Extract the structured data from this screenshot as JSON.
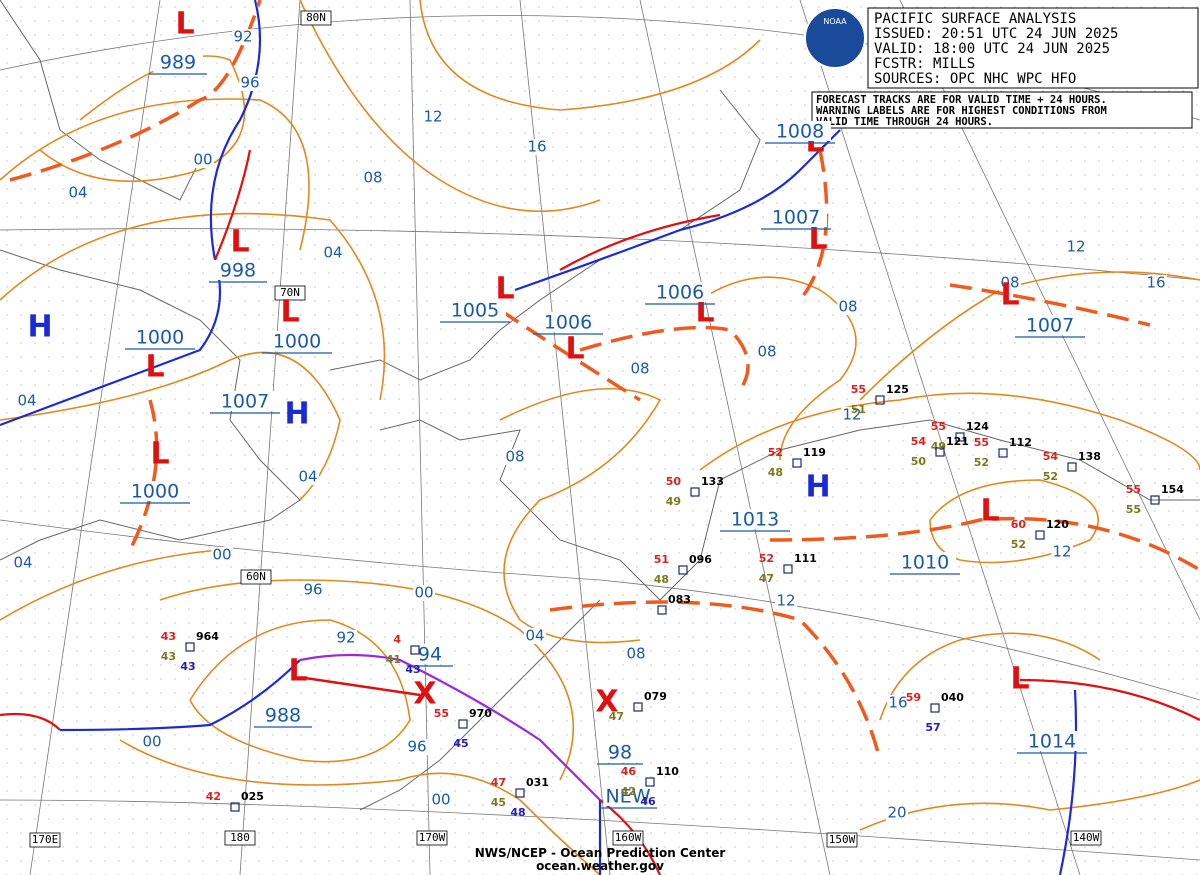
{
  "header": {
    "lines": [
      "PACIFIC SURFACE ANALYSIS",
      "ISSUED: 20:51 UTC 24 JUN 2025",
      "VALID:  18:00 UTC 24 JUN 2025",
      "FCSTR:  MILLS",
      "SOURCES: OPC NHC WPC HFO"
    ],
    "logo": "NOAA"
  },
  "notice": [
    "FORECAST TRACKS ARE FOR VALID TIME + 24 HOURS.",
    "WARNING LABELS ARE FOR HIGHEST CONDITIONS FROM",
    "VALID TIME THROUGH 24 HOURS."
  ],
  "grid_labels": [
    "80N",
    "70N",
    "60N",
    "170E",
    "180",
    "170W",
    "160W",
    "150W",
    "140W"
  ],
  "pressure_centers": [
    {
      "symbol": "L",
      "value": "989"
    },
    {
      "symbol": "L",
      "value": "998"
    },
    {
      "symbol": "L",
      "value": "1000"
    },
    {
      "symbol": "L",
      "value": "1000"
    },
    {
      "symbol": "L",
      "value": "1000"
    },
    {
      "symbol": "H",
      "value": "1007"
    },
    {
      "symbol": "H"
    },
    {
      "symbol": "L",
      "value": "1005"
    },
    {
      "symbol": "L",
      "value": "1006"
    },
    {
      "symbol": "L",
      "value": "1006"
    },
    {
      "symbol": "L",
      "value": "1008"
    },
    {
      "symbol": "L",
      "value": "1007"
    },
    {
      "symbol": "L",
      "value": "1007"
    },
    {
      "symbol": "H",
      "value": "1013"
    },
    {
      "symbol": "L",
      "value": "1010"
    },
    {
      "symbol": "L",
      "value": "1014"
    },
    {
      "symbol": "L",
      "value": "988"
    },
    {
      "symbol": "X",
      "value": "94"
    },
    {
      "symbol": "X",
      "value": "98"
    },
    {
      "value": "NEW"
    }
  ],
  "isobar_labels": [
    "92",
    "96",
    "00",
    "04",
    "04",
    "08",
    "12",
    "16",
    "04",
    "04",
    "08",
    "08",
    "08",
    "08",
    "08",
    "12",
    "16",
    "12",
    "00",
    "04",
    "96",
    "00",
    "92",
    "04",
    "08",
    "12",
    "12",
    "00",
    "96",
    "00",
    "16",
    "20"
  ],
  "station_colors": {
    "temp": "#dd2020",
    "pres": "#000000",
    "dew": "#7a7a1a",
    "extra": "#2020c0"
  },
  "stations": [
    {
      "temp": "55",
      "pres": "125",
      "dew": "51"
    },
    {
      "temp": "55",
      "pres": "124",
      "dew": "49"
    },
    {
      "temp": "54",
      "pres": "121",
      "dew": "50"
    },
    {
      "temp": "55",
      "pres": "112",
      "dew": "52"
    },
    {
      "temp": "54",
      "pres": "138",
      "dew": "52"
    },
    {
      "temp": "55",
      "pres": "154",
      "dew": "55"
    },
    {
      "temp": "52",
      "pres": "119",
      "dew": "48"
    },
    {
      "temp": "50",
      "pres": "133",
      "dew": "49"
    },
    {
      "temp": "51",
      "pres": "096",
      "dew": "48"
    },
    {
      "pres": "083"
    },
    {
      "temp": "52",
      "pres": "111",
      "dew": "47"
    },
    {
      "temp": "60",
      "pres": "120",
      "dew": "52"
    },
    {
      "temp": "59",
      "pres": "040",
      "extra": "57"
    },
    {
      "temp": "43",
      "pres": "964",
      "dew": "43",
      "extra": "43"
    },
    {
      "temp": "55",
      "pres": "970",
      "extra": "45"
    },
    {
      "temp": "42",
      "pres": "025"
    },
    {
      "temp": "47",
      "pres": "031",
      "dew": "45",
      "extra": "48"
    },
    {
      "pres": "079",
      "dew": "47"
    },
    {
      "temp": "46",
      "pres": "110",
      "dew": "42",
      "extra": "46"
    },
    {
      "temp": "4",
      "dew": "41",
      "extra": "43"
    }
  ],
  "footer": [
    "NWS/NCEP - Ocean Prediction Center",
    "ocean.weather.gov"
  ]
}
